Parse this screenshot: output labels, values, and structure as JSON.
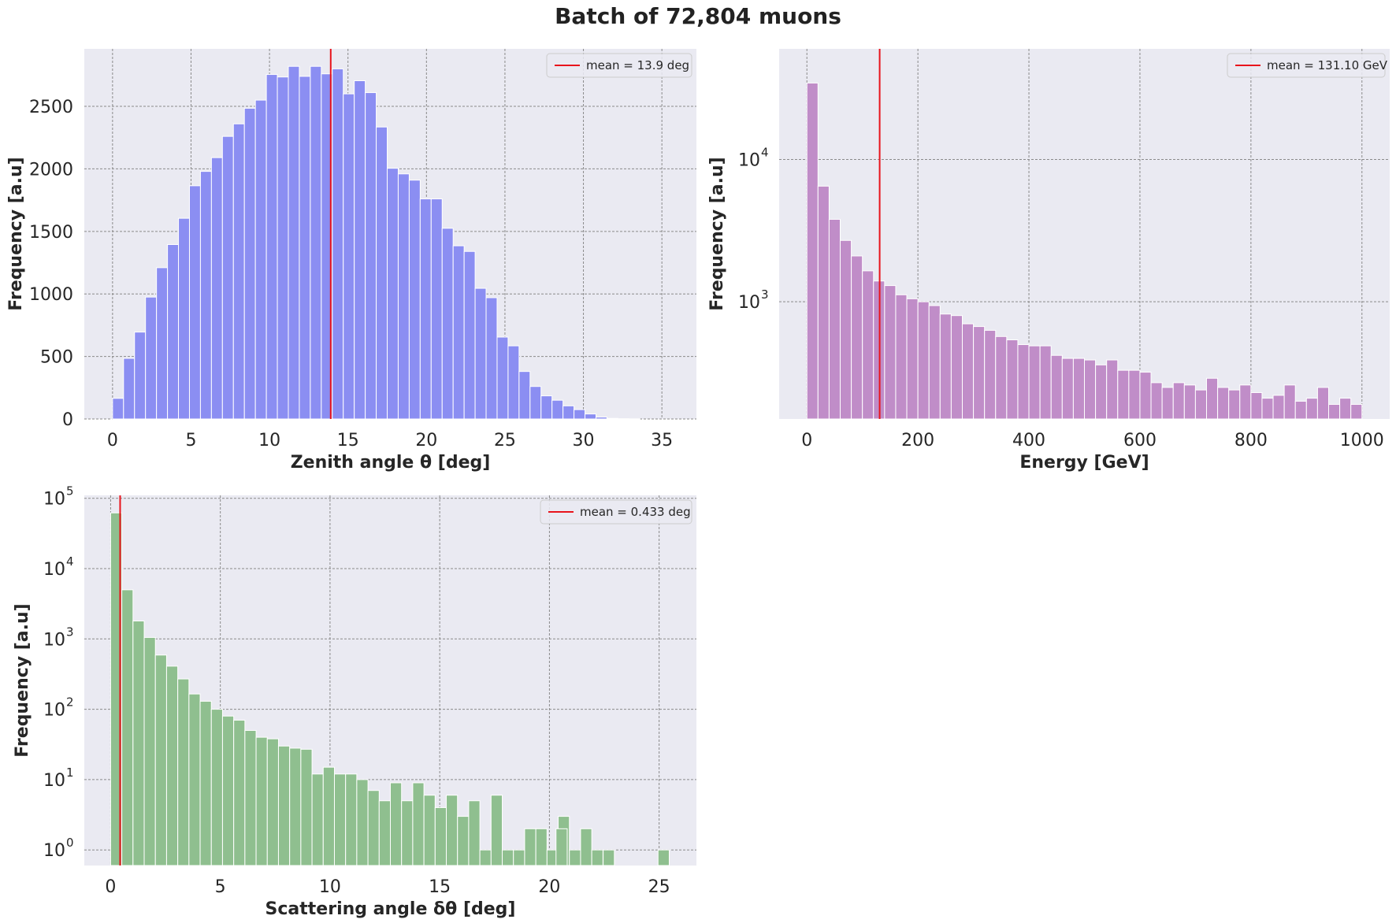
{
  "figure_title": "Batch of 72,804 muons",
  "chart_data": [
    {
      "type": "bar",
      "subtype": "histogram",
      "xlabel": "Zenith angle θ [deg]",
      "ylabel": "Frequency [a.u]",
      "yscale": "linear",
      "xlim": [
        -1.8,
        37.2
      ],
      "ylim": [
        0,
        2960
      ],
      "xticks": [
        0,
        5,
        10,
        15,
        20,
        25,
        30,
        35
      ],
      "yticks": [
        0,
        500,
        1000,
        1500,
        2000,
        2500
      ],
      "bin_start": 0.0,
      "bin_width": 0.7,
      "values": [
        165,
        485,
        695,
        975,
        1210,
        1395,
        1605,
        1865,
        1980,
        2090,
        2260,
        2360,
        2485,
        2550,
        2755,
        2735,
        2820,
        2740,
        2820,
        2760,
        2800,
        2600,
        2705,
        2610,
        2335,
        2005,
        1960,
        1910,
        1760,
        1760,
        1525,
        1385,
        1340,
        1045,
        970,
        655,
        585,
        380,
        260,
        185,
        150,
        105,
        75,
        40,
        15,
        5,
        2,
        1
      ],
      "bar_color": "#8b8ef2",
      "mean_line": 13.9,
      "legend": "mean = 13.9 deg",
      "legend_loc": "upper right",
      "grid": true
    },
    {
      "type": "bar",
      "subtype": "histogram",
      "xlabel": "Energy [GeV]",
      "ylabel": "Frequency [a.u]",
      "yscale": "log",
      "xlim": [
        -50,
        1050
      ],
      "ylim": [
        150,
        60000
      ],
      "xticks": [
        0,
        200,
        400,
        600,
        800,
        1000
      ],
      "yticks": [
        1000,
        10000
      ],
      "ytick_labels": [
        [
          "10",
          "3"
        ],
        [
          "10",
          "4"
        ]
      ],
      "bin_start": 0,
      "bin_width": 20,
      "values": [
        34500,
        6500,
        3800,
        2700,
        2100,
        1650,
        1400,
        1300,
        1120,
        1050,
        1000,
        940,
        820,
        800,
        700,
        670,
        630,
        570,
        540,
        500,
        490,
        490,
        420,
        400,
        400,
        390,
        360,
        390,
        330,
        330,
        320,
        270,
        250,
        270,
        260,
        240,
        290,
        250,
        240,
        260,
        230,
        210,
        220,
        260,
        200,
        210,
        250,
        190,
        210,
        190
      ],
      "bar_color": "#c08dc8",
      "mean_line": 131.1,
      "legend": "mean = 131.10 GeV",
      "legend_loc": "upper right",
      "grid": true
    },
    {
      "type": "bar",
      "subtype": "histogram",
      "xlabel": "Scattering angle δθ [deg]",
      "ylabel": "Frequency [a.u]",
      "yscale": "log",
      "xlim": [
        -1.2,
        26.7
      ],
      "ylim": [
        0.6,
        110000
      ],
      "xticks": [
        0,
        5,
        10,
        15,
        20,
        25
      ],
      "yticks": [
        1,
        10,
        100,
        1000,
        10000,
        100000
      ],
      "ytick_labels": [
        [
          "10",
          "0"
        ],
        [
          "10",
          "1"
        ],
        [
          "10",
          "2"
        ],
        [
          "10",
          "3"
        ],
        [
          "10",
          "4"
        ],
        [
          "10",
          "5"
        ]
      ],
      "bin_start": 0.0,
      "bin_width": 0.51,
      "values": [
        62000,
        5000,
        1800,
        1050,
        590,
        410,
        270,
        165,
        130,
        100,
        80,
        70,
        50,
        40,
        38,
        30,
        28,
        27,
        12,
        15,
        12,
        12,
        10,
        7,
        5,
        9,
        5,
        9,
        6,
        4,
        6,
        3,
        5,
        1,
        6,
        1,
        1,
        2,
        2,
        1,
        3,
        1,
        2,
        1,
        0,
        0,
        0,
        0,
        0,
        0,
        0,
        0,
        0,
        0,
        0,
        0,
        0,
        0,
        0,
        0,
        0,
        0,
        0,
        0,
        0,
        0,
        0,
        0,
        0,
        0,
        0,
        0,
        0,
        0,
        0,
        0,
        0,
        0,
        0,
        0,
        0,
        0
      ],
      "extra_bars": [
        [
          20.3,
          2
        ],
        [
          22.45,
          1
        ],
        [
          24.95,
          1
        ]
      ],
      "bar_color": "#8fbf8f",
      "mean_line": 0.433,
      "legend": "mean = 0.433 deg",
      "legend_loc": "upper right",
      "grid": true
    }
  ]
}
